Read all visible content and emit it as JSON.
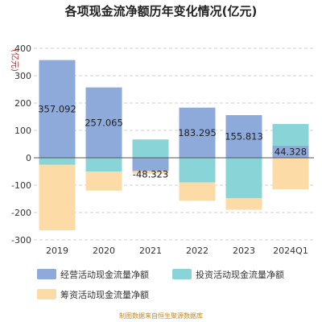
{
  "chart_data": {
    "type": "bar",
    "stacked": true,
    "title": "各项现金流净额历年变化情况(亿元)",
    "unit": "(亿元)",
    "categories": [
      "2019",
      "2020",
      "2021",
      "2022",
      "2023",
      "2024Q1"
    ],
    "series": [
      {
        "name": "经营活动现金流量净额",
        "color": "#8eaadb",
        "values": [
          357.092,
          257.065,
          -48.323,
          183.295,
          155.813,
          44.328
        ],
        "labels": [
          "357.092",
          "257.065",
          "-48.323",
          "183.295",
          "155.813",
          "44.328"
        ]
      },
      {
        "name": "投资活动现金流量净额",
        "color": "#88d4d6",
        "values": [
          -25,
          -50,
          67,
          -90,
          -148,
          79
        ],
        "labels": null
      },
      {
        "name": "筹资活动现金流量净额",
        "color": "#fddba6",
        "values": [
          -240,
          -70,
          -10,
          -67,
          -42,
          -115
        ],
        "labels": null
      }
    ],
    "ylim": [
      -300,
      400
    ],
    "yticks": [
      -300,
      -200,
      -100,
      0,
      100,
      200,
      300,
      400
    ],
    "grid": true,
    "legend_position": "bottom"
  },
  "source": "制图数据来自恒生聚源数据库"
}
